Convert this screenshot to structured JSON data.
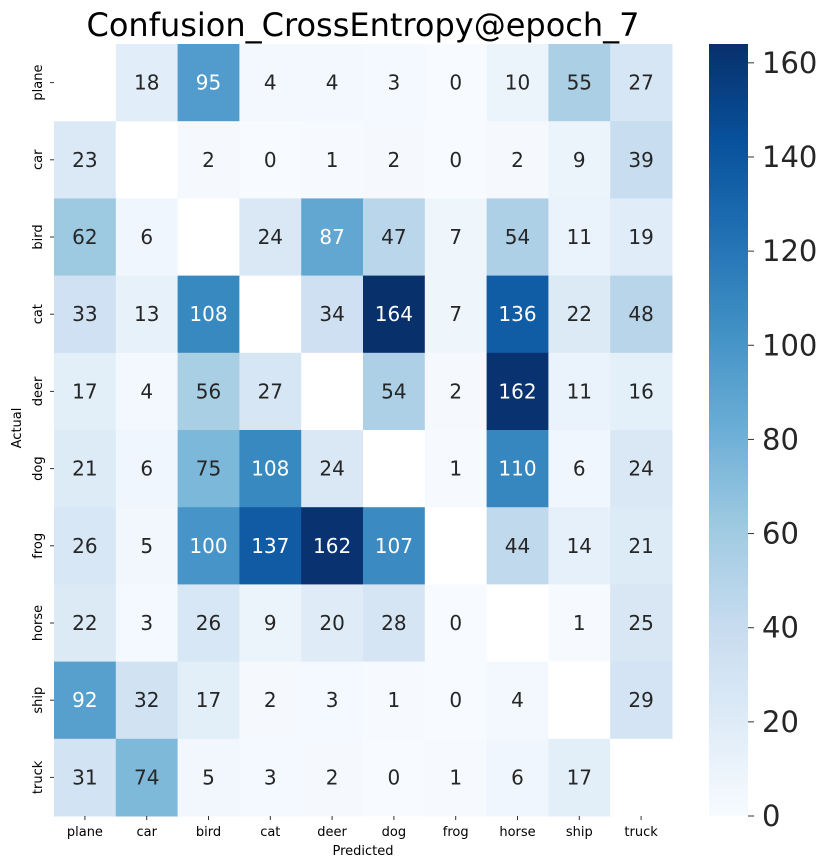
{
  "chart_data": {
    "type": "heatmap",
    "title": "Confusion_CrossEntropy@epoch_7",
    "xlabel": "Predicted",
    "ylabel": "Actual",
    "x_categories": [
      "plane",
      "car",
      "bird",
      "cat",
      "deer",
      "dog",
      "frog",
      "horse",
      "ship",
      "truck"
    ],
    "y_categories": [
      "plane",
      "car",
      "bird",
      "cat",
      "deer",
      "dog",
      "frog",
      "horse",
      "ship",
      "truck"
    ],
    "values": [
      [
        null,
        18,
        95,
        4,
        4,
        3,
        0,
        10,
        55,
        27
      ],
      [
        23,
        null,
        2,
        0,
        1,
        2,
        0,
        2,
        9,
        39
      ],
      [
        62,
        6,
        null,
        24,
        87,
        47,
        7,
        54,
        11,
        19
      ],
      [
        33,
        13,
        108,
        null,
        34,
        164,
        7,
        136,
        22,
        48
      ],
      [
        17,
        4,
        56,
        27,
        null,
        54,
        2,
        162,
        11,
        16
      ],
      [
        21,
        6,
        75,
        108,
        24,
        null,
        1,
        110,
        6,
        24
      ],
      [
        26,
        5,
        100,
        137,
        162,
        107,
        null,
        44,
        14,
        21
      ],
      [
        22,
        3,
        26,
        9,
        20,
        28,
        0,
        null,
        1,
        25
      ],
      [
        92,
        32,
        17,
        2,
        3,
        1,
        0,
        4,
        null,
        29
      ],
      [
        31,
        74,
        5,
        3,
        2,
        0,
        1,
        6,
        17,
        null
      ]
    ],
    "colorscale": "Blues",
    "vmin": 0,
    "vmax": 164,
    "colorbar_ticks": [
      0,
      20,
      40,
      60,
      80,
      100,
      120,
      140,
      160
    ]
  }
}
